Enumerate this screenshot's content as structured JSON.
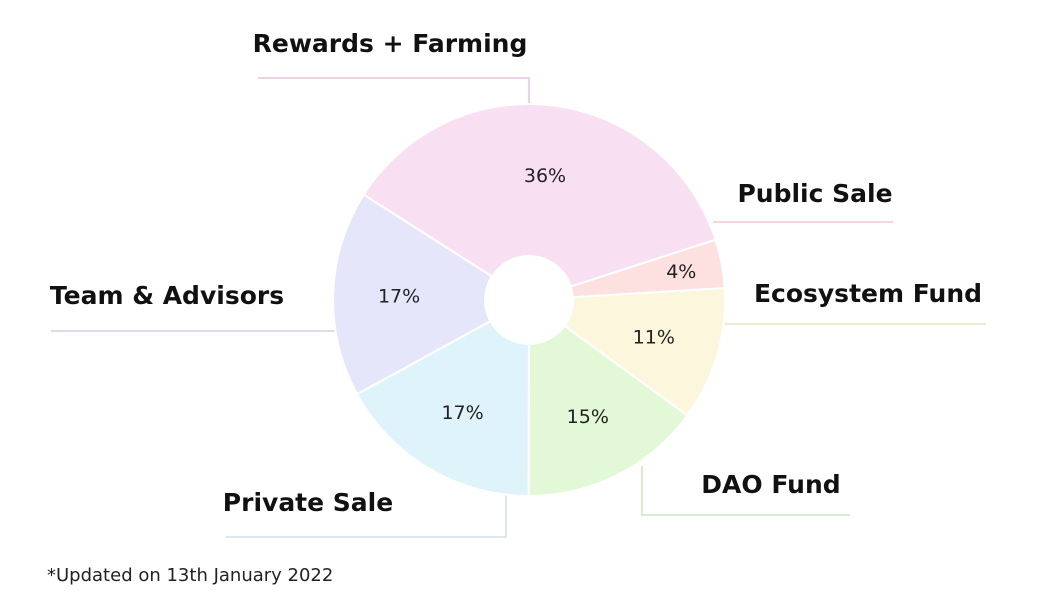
{
  "chart_data": {
    "type": "pie",
    "variant": "donut",
    "slices": [
      {
        "label": "Rewards + Farming",
        "value": 36,
        "value_label": "36%",
        "color": "#f8dff1",
        "leader_color": "#e6c4dd"
      },
      {
        "label": "Public Sale",
        "value": 4,
        "value_label": "4%",
        "color": "#fde0e0",
        "leader_color": "#f1c8cf"
      },
      {
        "label": "Ecosystem Fund",
        "value": 11,
        "value_label": "11%",
        "color": "#fbf6dc",
        "leader_color": "#dfe8c4"
      },
      {
        "label": "DAO Fund",
        "value": 15,
        "value_label": "15%",
        "color": "#e2f8d6",
        "leader_color": "#cde6bd"
      },
      {
        "label": "Private Sale",
        "value": 17,
        "value_label": "17%",
        "color": "#dff3fb",
        "leader_color": "#cfe0ea"
      },
      {
        "label": "Team & Advisors",
        "value": 17,
        "value_label": "17%",
        "color": "#e6e6fa",
        "leader_color": "#cfd2e8"
      }
    ]
  },
  "footnote": "*Updated on 13th January 2022"
}
